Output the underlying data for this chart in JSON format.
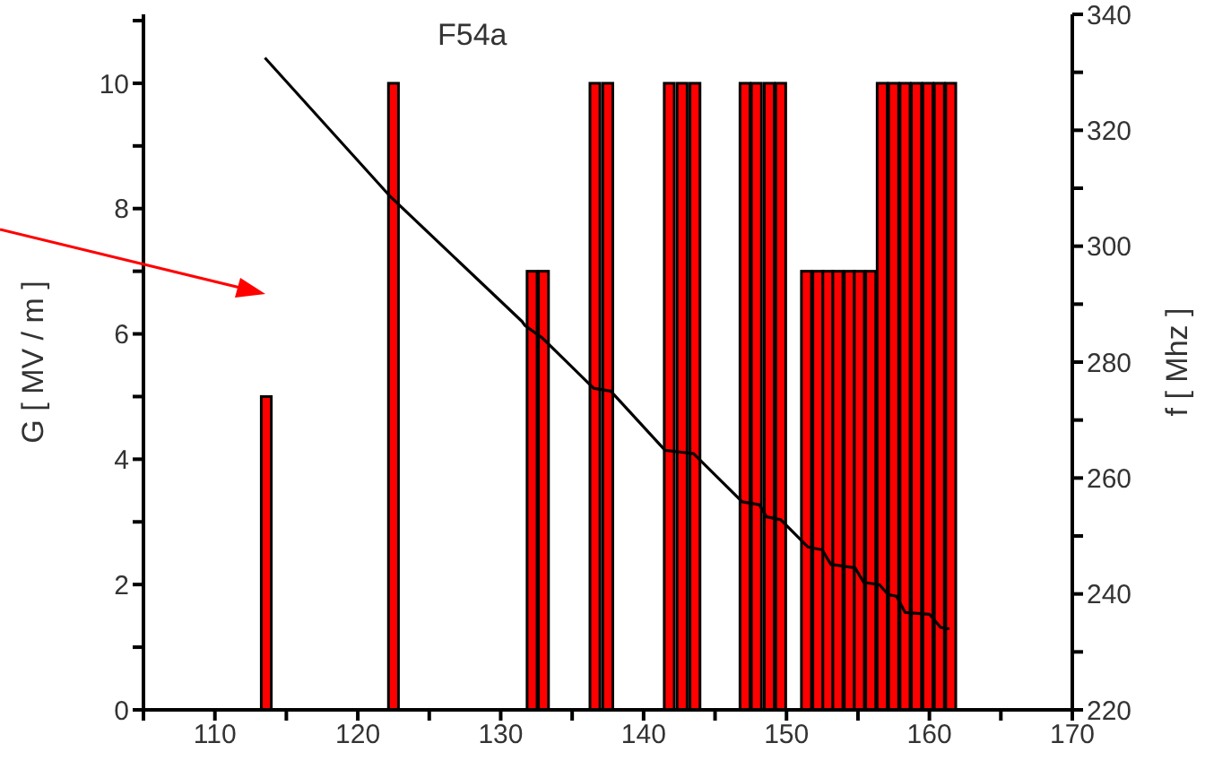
{
  "chart_data": {
    "type": "bar",
    "annotations": [
      "F54a"
    ],
    "ylabel": "G [ MV / m ]",
    "y2label": "f [ Mhz ]",
    "x": [
      113.6,
      122.5,
      132.2,
      133.0,
      136.6,
      137.5,
      141.8,
      142.7,
      143.6,
      147.1,
      147.9,
      148.8,
      149.6,
      151.4,
      152.2,
      152.9,
      153.6,
      154.4,
      155.1,
      155.9,
      156.7,
      157.5,
      158.3,
      159.1,
      159.9,
      160.7,
      161.5
    ],
    "series": [
      {
        "color": "#ff0000",
        "values": [
          5,
          10,
          7,
          7,
          10,
          10,
          10,
          10,
          10,
          10,
          10,
          10,
          10,
          7,
          7,
          7,
          7,
          7,
          7,
          7,
          10,
          10,
          10,
          10,
          10,
          10,
          10
        ]
      },
      {
        "type": "line",
        "axis": "y2",
        "color": "#000000",
        "x": [
          113.5,
          122.3,
          131.5,
          131.7,
          132.9,
          136.5,
          137.7,
          141.5,
          143.5,
          146.9,
          148.1,
          148.6,
          149.6,
          151.5,
          152.5,
          153.1,
          154.8,
          155.4,
          156.5,
          157.1,
          157.7,
          158.3,
          160.0,
          160.8,
          161.4
        ],
        "values": [
          332.5,
          308.5,
          287,
          286.3,
          284.2,
          275.5,
          275.0,
          264.8,
          264.2,
          255.9,
          255.4,
          253.3,
          252.8,
          248.1,
          247.6,
          245.1,
          244.5,
          242,
          241.6,
          239.9,
          239.6,
          236.8,
          236.5,
          234.2,
          234.0
        ]
      }
    ],
    "xlim": [
      105,
      170
    ],
    "xticks": [
      {
        "value": 105,
        "label": null
      },
      110,
      {
        "value": 115,
        "label": null
      },
      120,
      {
        "value": 125,
        "label": null
      },
      130,
      {
        "value": 135,
        "label": null
      },
      140,
      {
        "value": 145,
        "label": null
      },
      150,
      {
        "value": 155,
        "label": null
      },
      160,
      {
        "value": 165,
        "label": null
      },
      170
    ],
    "ylim": [
      0,
      11.1
    ],
    "yticks": [
      0,
      {
        "value": 1,
        "label": null
      },
      2,
      {
        "value": 3,
        "label": null
      },
      4,
      {
        "value": 5,
        "label": null
      },
      6,
      {
        "value": 7,
        "label": null
      },
      8,
      {
        "value": 9,
        "label": null
      },
      10,
      {
        "value": 11,
        "label": null
      }
    ],
    "y2lim": [
      220,
      340
    ],
    "y2ticks": [
      220,
      {
        "value": 230,
        "label": null
      },
      240,
      {
        "value": 250,
        "label": null
      },
      260,
      {
        "value": 270,
        "label": null
      },
      280,
      {
        "value": 290,
        "label": null
      },
      300,
      {
        "value": 310,
        "label": null
      },
      320,
      {
        "value": 330,
        "label": null
      },
      340
    ],
    "grid": false,
    "legend": false
  }
}
